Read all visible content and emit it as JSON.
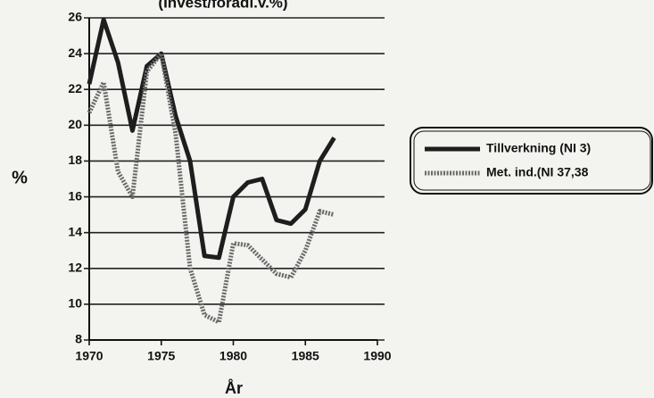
{
  "chart_data": {
    "type": "line",
    "title": "(Invest/förädl.v.%)",
    "x_label": "År",
    "y_label": "%",
    "x": [
      1970,
      1971,
      1972,
      1973,
      1974,
      1975,
      1976,
      1977,
      1978,
      1979,
      1980,
      1981,
      1982,
      1983,
      1984,
      1985,
      1986,
      1987
    ],
    "series": [
      {
        "name": "Tillverkning (NI 3)",
        "color": "#1e1e1e",
        "values": [
          22.3,
          25.9,
          23.5,
          19.7,
          23.3,
          24.0,
          20.5,
          18.0,
          12.7,
          12.6,
          16.0,
          16.8,
          17.0,
          14.7,
          14.5,
          15.3,
          18.0,
          19.3
        ]
      },
      {
        "name": "Met. ind.(NI 37,38",
        "color": "#6a6a6a",
        "values": [
          20.7,
          22.4,
          17.4,
          16.0,
          23.0,
          24.0,
          19.5,
          12.0,
          9.4,
          9.0,
          13.4,
          13.3,
          12.5,
          11.7,
          11.5,
          13.0,
          15.2,
          15.0
        ]
      }
    ],
    "xlim": [
      1970,
      1990
    ],
    "xticks": [
      1970,
      1975,
      1980,
      1985,
      1990
    ],
    "ylim": [
      8,
      26
    ],
    "yticks": [
      8,
      10,
      12,
      14,
      16,
      18,
      20,
      22,
      24,
      26
    ],
    "grid": true,
    "legend": "right"
  }
}
